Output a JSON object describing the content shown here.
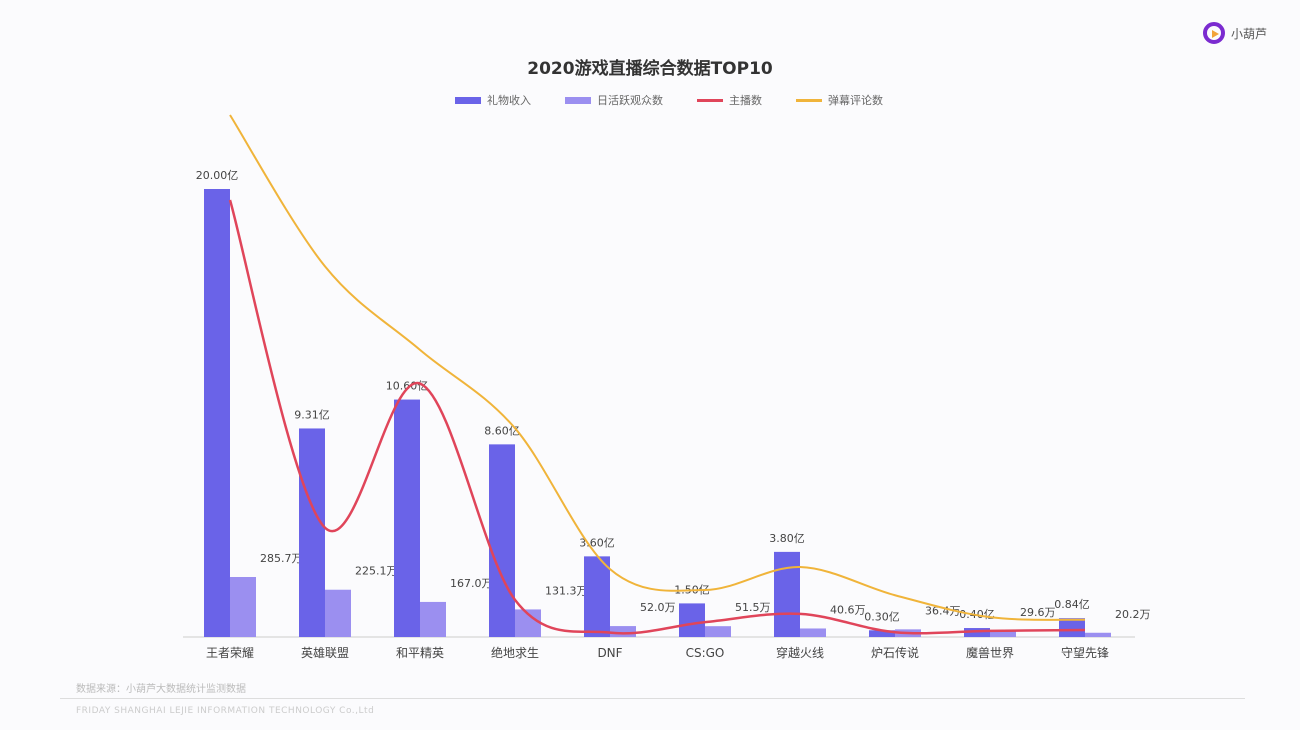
{
  "logo": {
    "text": "小葫芦"
  },
  "footer": {
    "source": "数据来源：小葫芦大数据统计监测数据",
    "copyright": "FRIDAY SHANGHAI LEJIE INFORMATION TECHNOLOGY Co.,Ltd"
  },
  "chart_data": {
    "type": "bar+line",
    "title": "2020游戏直播综合数据TOP10",
    "categories": [
      "王者荣耀",
      "英雄联盟",
      "和平精英",
      "绝地求生",
      "DNF",
      "CS:GO",
      "穿越火线",
      "炉石传说",
      "魔兽世界",
      "守望先锋"
    ],
    "legend_position": "top",
    "grid": false,
    "series": [
      {
        "name": "礼物收入",
        "type": "bar",
        "color": "#6a63e8",
        "values": [
          20.0,
          9.31,
          10.6,
          8.6,
          3.6,
          1.5,
          3.8,
          0.3,
          0.4,
          0.84
        ],
        "labels": [
          "20.00亿",
          "9.31亿",
          "10.60亿",
          "8.60亿",
          "3.60亿",
          "1.50亿",
          "3.80亿",
          "0.30亿",
          "0.40亿",
          "0.84亿"
        ]
      },
      {
        "name": "日活跃观众数",
        "type": "bar",
        "color": "#9b8ff0",
        "values": [
          285.7,
          225.1,
          167.0,
          131.3,
          52.0,
          51.5,
          40.6,
          36.4,
          29.6,
          20.2
        ],
        "labels": [
          "285.7万",
          "225.1万",
          "167.0万",
          "131.3万",
          "52.0万",
          "51.5万",
          "40.6万",
          "36.4万",
          "29.6万",
          "20.2万"
        ]
      },
      {
        "name": "主播数",
        "type": "line",
        "color": "#e0455a",
        "values": [
          100,
          25,
          58,
          8.5,
          1,
          3.4,
          5.3,
          1.1,
          1.4,
          1.6
        ]
      },
      {
        "name": "弹幕评论数",
        "type": "line",
        "color": "#f0b43a",
        "values": [
          100,
          71,
          55,
          40,
          13,
          9,
          13.4,
          8,
          3.8,
          3.3
        ]
      }
    ]
  }
}
